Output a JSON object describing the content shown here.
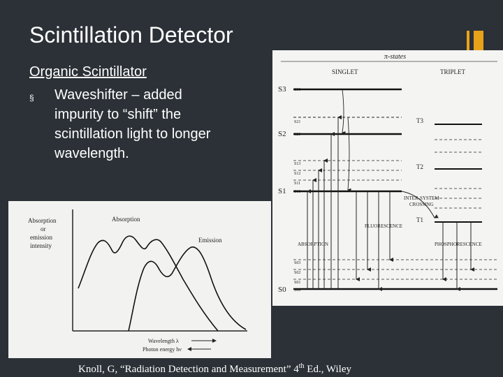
{
  "slide": {
    "title": "Scintillation Detector",
    "subheading": "Organic Scintillator",
    "bullet_marker": "§",
    "bullet_line1": "Waveshifter – added",
    "bullet_line2": "impurity to “shift” the",
    "bullet_line3": "scintillation light to longer",
    "bullet_line4": "wavelength.",
    "citation_before": "Knoll, G, “Radiation Detection and Measurement” 4",
    "citation_sup": "th",
    "citation_after": " Ed., Wiley"
  },
  "energy_diagram": {
    "header": "π-states",
    "singlet": "SINGLET",
    "triplet": "TRIPLET",
    "s3": "S3",
    "s30": "S30",
    "s2": "S2",
    "s21": "S21",
    "s20": "S20",
    "s1": "S1",
    "s13": "S13",
    "s12": "S12",
    "s11": "S11",
    "s10": "S10",
    "t3": "T3",
    "t2": "T2",
    "t1": "T1",
    "intersystem": "INTER-SYSTEM",
    "crossing": "CROSSING",
    "fluorescence": "FLUORESCENCE",
    "absorption": "ABSORPTION",
    "phosphorescence": "PHOSPHORESCENCE",
    "s03": "S03",
    "s02": "S02",
    "s01": "S01",
    "s00": "S00",
    "s0": "S0"
  },
  "spectrum": {
    "ylabel_line1": "Absorption",
    "ylabel_line2": "or",
    "ylabel_line3": "emission",
    "ylabel_line4": "intensity",
    "absorption_label": "Absorption",
    "emission_label": "Emission",
    "wavelength_label": "Wavelength λ",
    "energy_label": "Photon energy hν"
  }
}
